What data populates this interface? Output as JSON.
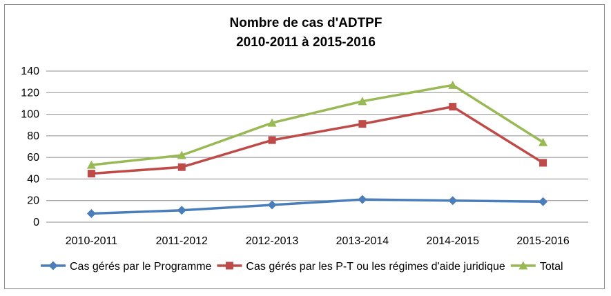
{
  "chart_data": {
    "type": "line",
    "title": [
      "Nombre de cas d'ADTPF",
      "2010-2011 à 2015-2016"
    ],
    "categories": [
      "2010-2011",
      "2011-2012",
      "2012-2013",
      "2013-2014",
      "2014-2015",
      "2015-2016"
    ],
    "ylim": [
      0,
      140
    ],
    "yticks": [
      0,
      20,
      40,
      60,
      80,
      100,
      120,
      140
    ],
    "grid": true,
    "legend_position": "bottom",
    "series": [
      {
        "name": "Cas gérés par le Programme",
        "values": [
          8,
          11,
          16,
          21,
          20,
          19
        ],
        "color": "#4a7ebb",
        "marker": "diamond"
      },
      {
        "name": "Cas gérés par les P-T ou les régimes d'aide juridique",
        "values": [
          45,
          51,
          76,
          91,
          107,
          55
        ],
        "color": "#be4b48",
        "marker": "square"
      },
      {
        "name": "Total",
        "values": [
          53,
          62,
          92,
          112,
          127,
          74
        ],
        "color": "#98b954",
        "marker": "triangle"
      }
    ]
  }
}
